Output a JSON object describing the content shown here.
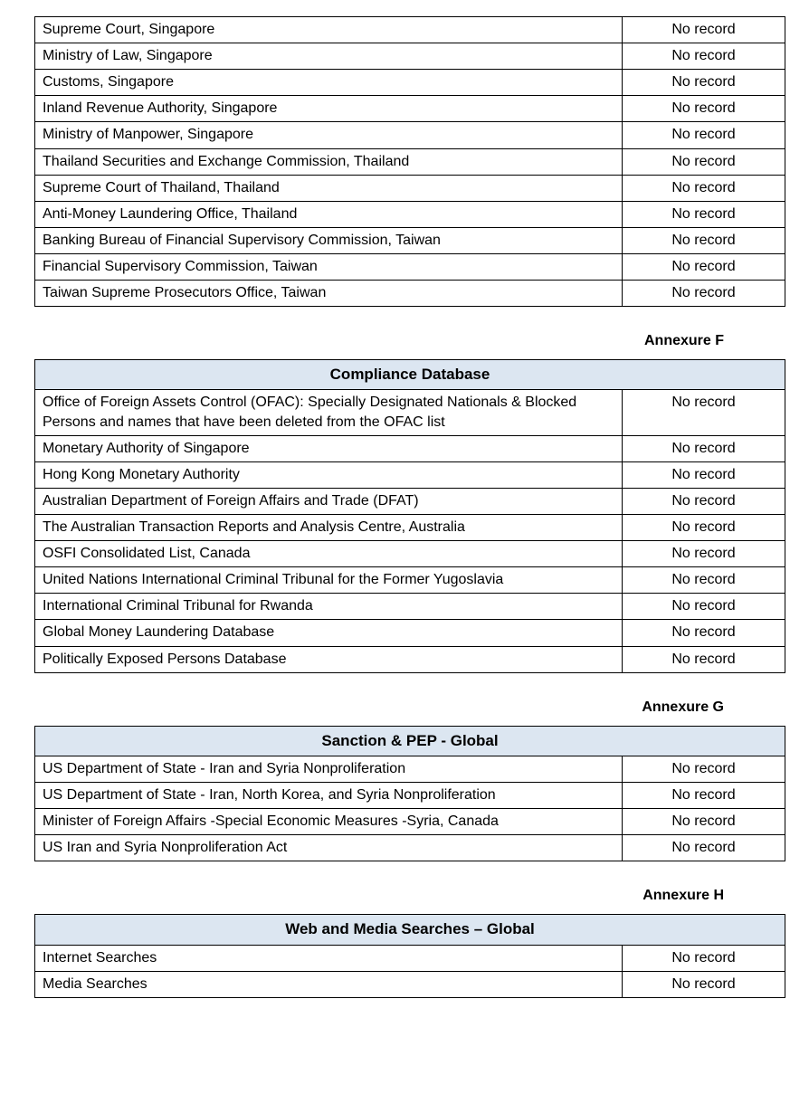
{
  "annexures": [
    {
      "label": "Annexure F"
    },
    {
      "label": "Annexure G"
    },
    {
      "label": "Annexure H"
    }
  ],
  "tables": [
    {
      "title": "",
      "rows": [
        {
          "source": "Supreme Court, Singapore",
          "result": "No record"
        },
        {
          "source": "Ministry of Law, Singapore",
          "result": "No record"
        },
        {
          "source": "Customs, Singapore",
          "result": "No record"
        },
        {
          "source": "Inland Revenue Authority, Singapore",
          "result": "No record"
        },
        {
          "source": "Ministry of Manpower, Singapore",
          "result": "No record"
        },
        {
          "source": "Thailand Securities and Exchange Commission, Thailand",
          "result": "No record"
        },
        {
          "source": "Supreme Court of Thailand, Thailand",
          "result": "No record"
        },
        {
          "source": "Anti-Money Laundering Office, Thailand",
          "result": "No record"
        },
        {
          "source": "Banking Bureau of Financial Supervisory Commission, Taiwan",
          "result": "No record"
        },
        {
          "source": "Financial Supervisory Commission, Taiwan",
          "result": "No record"
        },
        {
          "source": "Taiwan Supreme Prosecutors Office, Taiwan",
          "result": "No record"
        }
      ]
    },
    {
      "title": "Compliance Database",
      "rows": [
        {
          "source": "Office of Foreign Assets Control (OFAC): Specially Designated Nationals & Blocked Persons and names that have been deleted from the OFAC list",
          "result": "No record"
        },
        {
          "source": "Monetary Authority of Singapore",
          "result": "No record"
        },
        {
          "source": "Hong Kong Monetary Authority",
          "result": "No record"
        },
        {
          "source": "Australian Department of Foreign Affairs and Trade (DFAT)",
          "result": "No record"
        },
        {
          "source": "The Australian Transaction Reports and Analysis Centre, Australia",
          "result": "No record"
        },
        {
          "source": "OSFI Consolidated List, Canada",
          "result": "No record"
        },
        {
          "source": "United Nations International Criminal Tribunal for the Former Yugoslavia",
          "result": "No record"
        },
        {
          "source": "International Criminal Tribunal for Rwanda",
          "result": "No record"
        },
        {
          "source": "Global Money Laundering Database",
          "result": "No record"
        },
        {
          "source": "Politically Exposed Persons Database",
          "result": "No record"
        }
      ]
    },
    {
      "title": "Sanction & PEP - Global",
      "rows": [
        {
          "source": "US Department of State - Iran and Syria Nonproliferation",
          "result": "No record"
        },
        {
          "source": "US Department of State - Iran, North Korea, and Syria Nonproliferation",
          "result": "No record"
        },
        {
          "source": "Minister of Foreign Affairs -Special Economic Measures -Syria, Canada",
          "result": "No record"
        },
        {
          "source": "US Iran and Syria Nonproliferation Act",
          "result": "No record"
        }
      ]
    },
    {
      "title": "Web and Media Searches – Global",
      "rows": [
        {
          "source": "Internet Searches",
          "result": "No record"
        },
        {
          "source": "Media Searches",
          "result": "No record"
        }
      ]
    }
  ]
}
